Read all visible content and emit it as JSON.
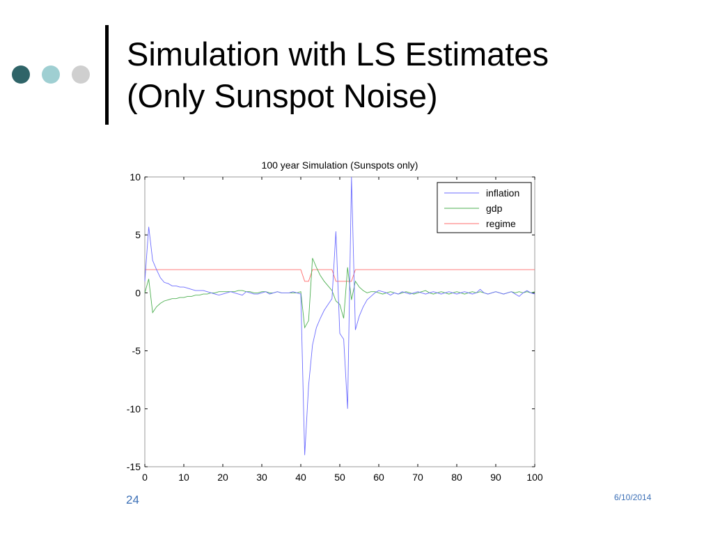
{
  "slide": {
    "title_line1": "Simulation with LS Estimates",
    "title_line2": "(Only Sunspot Noise)",
    "page_number": "24",
    "date": "6/10/2014"
  },
  "colors": {
    "dot1": "#2f6468",
    "dot2": "#9fcfd2",
    "dot3": "#cfcfcf",
    "inflation": "#6b6bff",
    "gdp": "#4caf50",
    "regime": "#ff6b6b",
    "footer": "#3b6fb6"
  },
  "chart_data": {
    "type": "line",
    "title": "100 year Simulation (Sunspots only)",
    "xlabel": "",
    "ylabel": "",
    "xlim": [
      0,
      100
    ],
    "ylim": [
      -15,
      10
    ],
    "xticks": [
      0,
      10,
      20,
      30,
      40,
      50,
      60,
      70,
      80,
      90,
      100
    ],
    "yticks": [
      10,
      5,
      0,
      -5,
      -10,
      -15
    ],
    "grid": false,
    "legend_position": "top-right",
    "series": [
      {
        "name": "inflation",
        "x": [
          0,
          1,
          2,
          3,
          4,
          5,
          6,
          7,
          8,
          9,
          10,
          11,
          12,
          13,
          14,
          15,
          16,
          17,
          18,
          19,
          20,
          21,
          22,
          23,
          24,
          25,
          26,
          27,
          28,
          29,
          30,
          31,
          32,
          33,
          34,
          35,
          36,
          37,
          38,
          39,
          40,
          41,
          42,
          43,
          44,
          45,
          46,
          47,
          48,
          49,
          50,
          51,
          52,
          53,
          54,
          55,
          56,
          57,
          58,
          59,
          60,
          61,
          62,
          63,
          64,
          65,
          66,
          67,
          68,
          69,
          70,
          71,
          72,
          73,
          74,
          75,
          76,
          77,
          78,
          79,
          80,
          81,
          82,
          83,
          84,
          85,
          86,
          87,
          88,
          89,
          90,
          91,
          92,
          93,
          94,
          95,
          96,
          97,
          98,
          99,
          100
        ],
        "values": [
          1.0,
          5.7,
          2.8,
          2.0,
          1.3,
          0.9,
          0.8,
          0.6,
          0.6,
          0.5,
          0.5,
          0.4,
          0.3,
          0.2,
          0.2,
          0.2,
          0.1,
          0.0,
          -0.1,
          -0.2,
          -0.1,
          0.0,
          0.1,
          0.0,
          -0.1,
          -0.2,
          0.1,
          0.0,
          -0.1,
          -0.1,
          0.0,
          0.1,
          -0.1,
          0.0,
          0.1,
          0.0,
          0.0,
          0.0,
          0.1,
          0.0,
          -0.1,
          -14.0,
          -8.0,
          -4.5,
          -3.0,
          -2.2,
          -1.5,
          -1.0,
          -0.5,
          5.3,
          -3.5,
          -4.0,
          -10.0,
          10.0,
          -3.2,
          -2.0,
          -1.2,
          -0.6,
          -0.3,
          0.0,
          0.2,
          0.1,
          0.0,
          -0.2,
          0.0,
          -0.1,
          0.1,
          0.0,
          -0.1,
          0.0,
          0.1,
          0.0,
          -0.1,
          0.0,
          0.1,
          0.0,
          -0.1,
          0.0,
          0.1,
          0.0,
          -0.1,
          0.0,
          0.1,
          0.0,
          -0.1,
          0.0,
          0.3,
          0.0,
          -0.1,
          0.0,
          0.1,
          0.0,
          -0.1,
          0.0,
          0.1,
          -0.1,
          -0.3,
          0.0,
          0.2,
          0.0,
          -0.1
        ]
      },
      {
        "name": "gdp",
        "x": [
          0,
          1,
          2,
          3,
          4,
          5,
          6,
          7,
          8,
          9,
          10,
          11,
          12,
          13,
          14,
          15,
          16,
          17,
          18,
          19,
          20,
          21,
          22,
          23,
          24,
          25,
          26,
          27,
          28,
          29,
          30,
          31,
          32,
          33,
          34,
          35,
          36,
          37,
          38,
          39,
          40,
          41,
          42,
          43,
          44,
          45,
          46,
          47,
          48,
          49,
          50,
          51,
          52,
          53,
          54,
          55,
          56,
          57,
          58,
          59,
          60,
          61,
          62,
          63,
          64,
          65,
          66,
          67,
          68,
          69,
          70,
          71,
          72,
          73,
          74,
          75,
          76,
          77,
          78,
          79,
          80,
          81,
          82,
          83,
          84,
          85,
          86,
          87,
          88,
          89,
          90,
          91,
          92,
          93,
          94,
          95,
          96,
          97,
          98,
          99,
          100
        ],
        "values": [
          0.0,
          1.2,
          -1.7,
          -1.2,
          -0.9,
          -0.7,
          -0.6,
          -0.5,
          -0.5,
          -0.4,
          -0.4,
          -0.3,
          -0.3,
          -0.2,
          -0.2,
          -0.1,
          -0.1,
          0.0,
          0.0,
          0.1,
          0.1,
          0.1,
          0.1,
          0.1,
          0.2,
          0.2,
          0.1,
          0.1,
          0.0,
          0.0,
          0.1,
          0.1,
          0.0,
          0.0,
          0.1,
          0.0,
          0.0,
          0.0,
          0.0,
          0.0,
          0.1,
          -3.0,
          -2.4,
          3.0,
          2.2,
          1.5,
          1.0,
          0.6,
          0.2,
          -0.7,
          -1.0,
          -2.2,
          2.2,
          -0.6,
          1.0,
          0.5,
          0.2,
          0.0,
          0.1,
          0.1,
          0.0,
          -0.1,
          0.0,
          0.1,
          0.0,
          -0.1,
          0.0,
          0.1,
          0.0,
          -0.1,
          0.0,
          0.1,
          0.2,
          0.0,
          -0.1,
          0.0,
          0.1,
          0.0,
          -0.1,
          0.0,
          0.1,
          0.0,
          -0.1,
          0.0,
          0.1,
          0.0,
          0.1,
          0.0,
          -0.1,
          0.0,
          0.1,
          0.0,
          -0.1,
          0.0,
          0.1,
          0.0,
          0.1,
          0.0,
          0.1,
          0.0,
          0.1
        ]
      },
      {
        "name": "regime",
        "x": [
          0,
          1,
          2,
          3,
          40,
          41,
          42,
          43,
          44,
          48,
          49,
          50,
          51,
          52,
          53,
          54,
          55,
          100
        ],
        "values": [
          2,
          2,
          2,
          2,
          2,
          1,
          1,
          2,
          2,
          2,
          1,
          1,
          1,
          1,
          1,
          2,
          2,
          2
        ]
      }
    ]
  }
}
